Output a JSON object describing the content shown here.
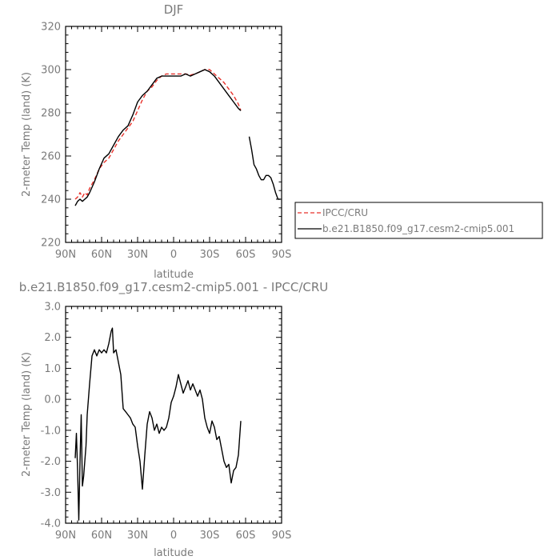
{
  "chart_data": [
    {
      "type": "line",
      "title": "DJF",
      "xlabel": "latitude",
      "ylabel": "2-meter Temp (land) (K)",
      "xlim": [
        90,
        -90
      ],
      "ylim": [
        220,
        320
      ],
      "x_ticks": [
        90,
        60,
        30,
        0,
        -30,
        -60,
        -90
      ],
      "x_tick_labels": [
        "90N",
        "60N",
        "30N",
        "0",
        "30S",
        "60S",
        "90S"
      ],
      "y_ticks": [
        220,
        240,
        260,
        280,
        300,
        320
      ],
      "y_tick_labels": [
        "220",
        "240",
        "260",
        "280",
        "300",
        "320"
      ],
      "legend": {
        "placement": "right"
      },
      "series": [
        {
          "name": "IPCC/CRU",
          "color": "#e8322b",
          "dash": "dashed",
          "x": [
            82,
            80,
            78,
            76,
            74,
            72,
            70,
            66,
            62,
            58,
            54,
            50,
            46,
            42,
            38,
            34,
            30,
            26,
            22,
            18,
            14,
            10,
            6,
            2,
            -2,
            -6,
            -10,
            -14,
            -18,
            -22,
            -26,
            -30,
            -34,
            -38,
            -42,
            -46,
            -50,
            -54,
            -56
          ],
          "y": [
            240,
            241,
            243,
            241,
            243,
            242,
            245,
            249,
            254,
            257,
            259,
            263,
            267,
            270,
            273,
            276,
            281,
            286,
            290,
            292,
            295,
            297,
            298,
            298,
            298,
            298,
            298,
            297.5,
            298,
            299,
            300,
            300,
            298,
            296,
            294,
            291,
            288,
            284,
            281
          ]
        },
        {
          "name": "b.e21.B1850.f09_g17.cesm2-cmip5.001",
          "color": "#000000",
          "dash": "solid",
          "x": [
            82,
            80,
            78,
            76,
            74,
            72,
            70,
            66,
            62,
            58,
            54,
            50,
            46,
            42,
            38,
            34,
            30,
            26,
            22,
            18,
            14,
            10,
            6,
            2,
            -2,
            -6,
            -10,
            -14,
            -18,
            -22,
            -26,
            -30,
            -34,
            -38,
            -42,
            -46,
            -50,
            -54,
            -56,
            null,
            -63,
            -65,
            -67,
            -69,
            -71,
            -73,
            -75,
            -77,
            -79,
            -81,
            -83,
            -85,
            -87,
            -89
          ],
          "y": [
            237,
            239,
            240,
            239,
            240,
            241,
            243,
            248,
            254,
            259,
            261,
            265,
            269,
            272,
            274,
            279,
            285,
            288,
            290,
            293,
            296,
            297,
            297,
            297,
            297,
            297,
            298,
            297,
            298,
            299,
            300,
            299,
            297,
            294,
            291,
            288,
            285,
            282,
            281,
            null,
            269,
            263,
            256,
            254,
            251,
            249,
            249,
            251,
            251,
            250,
            247,
            243,
            240,
            240
          ]
        }
      ]
    },
    {
      "type": "line",
      "title": "b.e21.B1850.f09_g17.cesm2-cmip5.001 - IPCC/CRU",
      "xlabel": "latitude",
      "ylabel": "2-meter Temp (land) (K)",
      "xlim": [
        90,
        -90
      ],
      "ylim": [
        -4.0,
        3.0
      ],
      "x_ticks": [
        90,
        60,
        30,
        0,
        -30,
        -60,
        -90
      ],
      "x_tick_labels": [
        "90N",
        "60N",
        "30N",
        "0",
        "30S",
        "60S",
        "90S"
      ],
      "y_ticks": [
        -4,
        -3,
        -2,
        -1,
        0,
        1,
        2,
        3
      ],
      "y_tick_labels": [
        "-4.0",
        "-3.0",
        "-2.0",
        "-1.0",
        "0.0",
        "1.0",
        "2.0",
        "3.0"
      ],
      "series": [
        {
          "color": "#000000",
          "dash": "solid",
          "x": [
            82,
            81,
            80,
            79,
            78,
            77,
            76,
            75,
            74,
            73,
            72,
            70,
            68,
            66,
            64,
            62,
            60,
            58,
            56,
            54,
            52,
            51,
            50,
            48,
            46,
            44,
            42,
            40,
            38,
            36,
            34,
            32,
            30,
            28,
            26,
            24,
            22,
            20,
            18,
            16,
            14,
            12,
            10,
            8,
            6,
            4,
            2,
            0,
            -2,
            -4,
            -6,
            -8,
            -10,
            -12,
            -14,
            -16,
            -18,
            -20,
            -22,
            -24,
            -26,
            -28,
            -30,
            -32,
            -34,
            -36,
            -38,
            -40,
            -42,
            -44,
            -46,
            -48,
            -50,
            -52,
            -54,
            -56
          ],
          "y": [
            -1.9,
            -1.1,
            -2.3,
            -3.9,
            -2.0,
            -0.5,
            -2.8,
            -2.5,
            -2.0,
            -1.5,
            -0.5,
            0.5,
            1.4,
            1.6,
            1.4,
            1.6,
            1.5,
            1.6,
            1.5,
            1.8,
            2.2,
            2.3,
            1.5,
            1.6,
            1.2,
            0.8,
            -0.3,
            -0.4,
            -0.5,
            -0.6,
            -0.8,
            -0.9,
            -1.5,
            -2.0,
            -2.9,
            -1.8,
            -0.8,
            -0.4,
            -0.6,
            -1.0,
            -0.8,
            -1.1,
            -0.9,
            -1.0,
            -0.9,
            -0.6,
            -0.1,
            0.1,
            0.4,
            0.8,
            0.5,
            0.2,
            0.4,
            0.6,
            0.3,
            0.5,
            0.3,
            0.1,
            0.3,
            0.0,
            -0.6,
            -0.9,
            -1.1,
            -0.7,
            -0.9,
            -1.3,
            -1.2,
            -1.6,
            -2.0,
            -2.2,
            -2.1,
            -2.7,
            -2.3,
            -2.2,
            -1.8,
            -0.7
          ]
        }
      ]
    }
  ]
}
